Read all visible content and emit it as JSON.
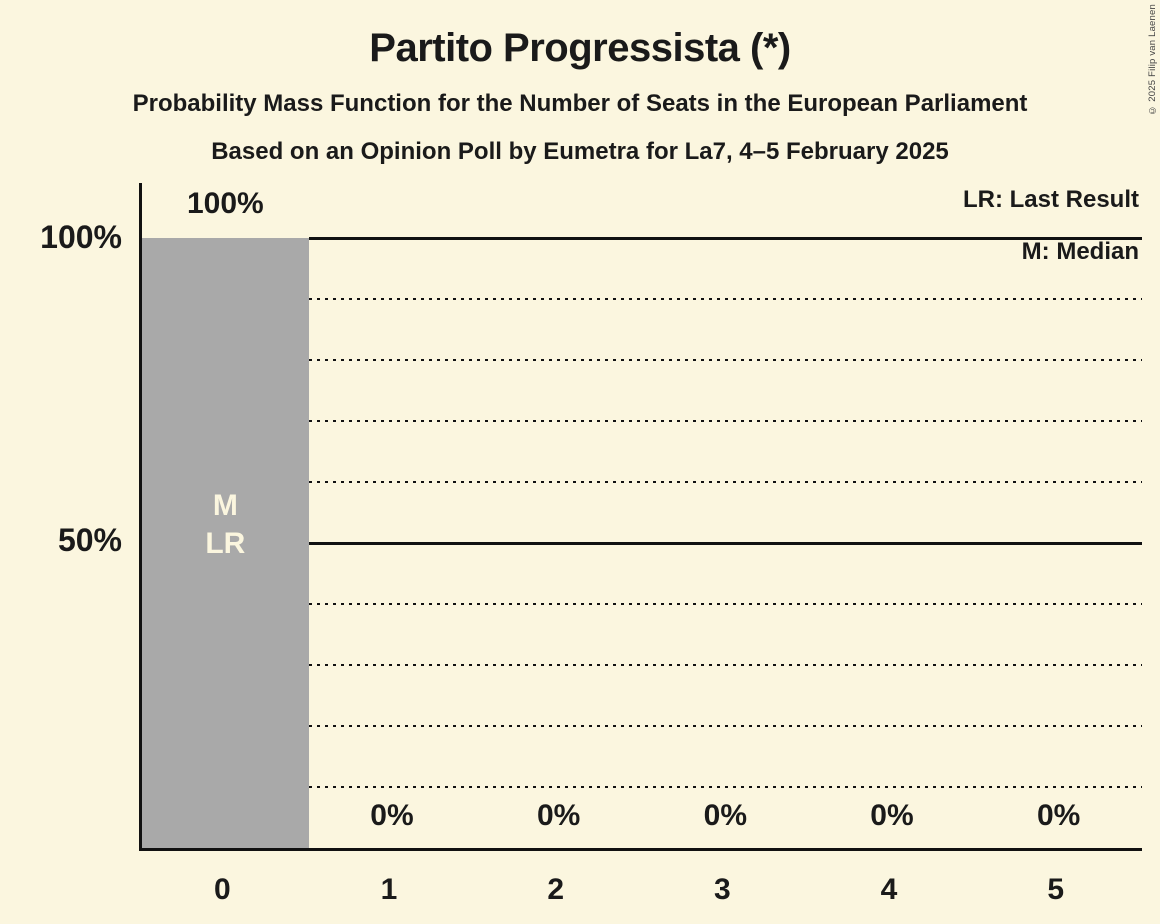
{
  "header": {
    "title": "Partito Progressista (*)",
    "subtitle": "Probability Mass Function for the Number of Seats in the European Parliament",
    "poll_line": "Based on an Opinion Poll by Eumetra for La7, 4–5 February 2025"
  },
  "legend": {
    "last_result": "LR: Last Result",
    "median": "M: Median"
  },
  "y_axis": {
    "label_100": "100%",
    "label_50": "50%"
  },
  "x_axis": {
    "ticks": [
      "0",
      "1",
      "2",
      "3",
      "4",
      "5"
    ]
  },
  "bar_seat_0": {
    "value_label": "100%",
    "median_marker": "M",
    "last_result_marker": "LR"
  },
  "zero_value_labels": [
    "0%",
    "0%",
    "0%",
    "0%",
    "0%"
  ],
  "copyright": "© 2025 Filip van Laenen",
  "colors": {
    "background": "#FBF6DF",
    "bar": "#A9A9A9",
    "text": "#1A1A1A",
    "bar_marker_text": "#FBF6DF",
    "gridline": "#111111"
  },
  "chart_data": {
    "type": "bar",
    "title": "Partito Progressista (*)",
    "subtitle": "Probability Mass Function for the Number of Seats in the European Parliament",
    "source_line": "Based on an Opinion Poll by Eumetra for La7, 4–5 February 2025",
    "categories": [
      "0",
      "1",
      "2",
      "3",
      "4",
      "5"
    ],
    "values": [
      100,
      0,
      0,
      0,
      0,
      0
    ],
    "value_labels": [
      "100%",
      "0%",
      "0%",
      "0%",
      "0%",
      "0%"
    ],
    "xlabel": "",
    "ylabel": "",
    "ylim": [
      0,
      100
    ],
    "y_tick_labels": [
      "100%",
      "50%"
    ],
    "y_solid_gridlines_pct": [
      100,
      50
    ],
    "y_dotted_gridlines_pct": [
      90,
      80,
      70,
      60,
      40,
      30,
      20,
      10
    ],
    "grid": "horizontal-only",
    "legend_position": "top-right",
    "legend_entries": [
      "LR: Last Result",
      "M: Median"
    ],
    "annotations": {
      "median_seat": "0",
      "last_result_seat": "0",
      "in_bar_markers": [
        "M",
        "LR"
      ]
    }
  }
}
